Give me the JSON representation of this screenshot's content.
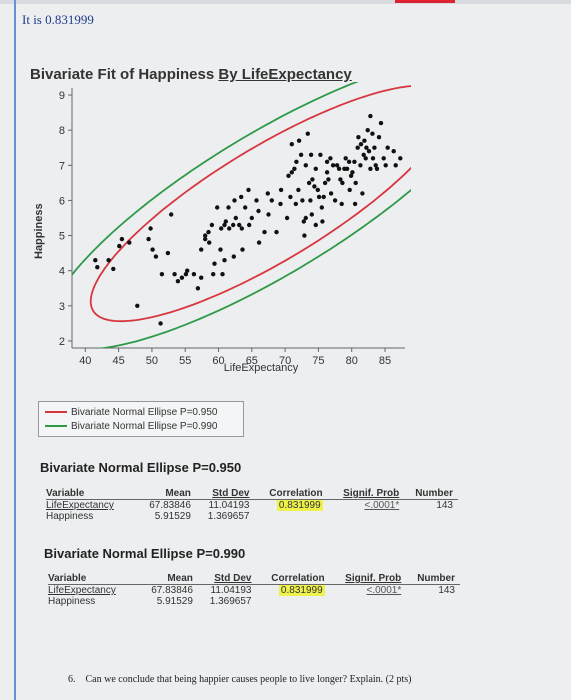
{
  "intro_text": "It is 0.831999",
  "figure": {
    "title_prefix": "Bivariate Fit of Happiness ",
    "title_suffix": "By LifeExpectancy"
  },
  "colors": {
    "ellipse_950": "#d8363f",
    "ellipse_990": "#2e9a48",
    "points": "#111111",
    "highlight": "#eef24a"
  },
  "chart_data": {
    "type": "scatter",
    "title": "Bivariate Fit of Happiness By LifeExpectancy",
    "xlabel": "LifeExpectancy",
    "ylabel": "Happiness",
    "xlim": [
      38,
      88
    ],
    "ylim": [
      1.8,
      9.2
    ],
    "x_ticks": [
      40,
      45,
      50,
      55,
      60,
      65,
      70,
      75,
      80,
      85
    ],
    "y_ticks": [
      2,
      3,
      4,
      5,
      6,
      7,
      8,
      9
    ],
    "points": [
      [
        41.5,
        4.3
      ],
      [
        41.8,
        4.1
      ],
      [
        43.5,
        4.3
      ],
      [
        44.2,
        4.05
      ],
      [
        45.1,
        4.7
      ],
      [
        45.5,
        4.9
      ],
      [
        46.6,
        4.8
      ],
      [
        47.8,
        3.0
      ],
      [
        49.5,
        4.9
      ],
      [
        49.8,
        5.2
      ],
      [
        50.1,
        4.6
      ],
      [
        50.6,
        4.4
      ],
      [
        51.3,
        2.5
      ],
      [
        51.5,
        3.9
      ],
      [
        52.4,
        4.5
      ],
      [
        52.9,
        5.6
      ],
      [
        53.4,
        3.9
      ],
      [
        53.9,
        3.7
      ],
      [
        54.5,
        3.8
      ],
      [
        55.1,
        3.9
      ],
      [
        55.3,
        4.0
      ],
      [
        56.3,
        3.9
      ],
      [
        56.9,
        3.5
      ],
      [
        57.4,
        4.6
      ],
      [
        57.4,
        3.8
      ],
      [
        58.0,
        5.0
      ],
      [
        58.0,
        4.9
      ],
      [
        58.5,
        5.1
      ],
      [
        58.6,
        4.8
      ],
      [
        59.0,
        5.3
      ],
      [
        59.2,
        3.9
      ],
      [
        59.4,
        4.2
      ],
      [
        59.8,
        5.8
      ],
      [
        60.3,
        4.6
      ],
      [
        60.4,
        5.2
      ],
      [
        60.6,
        3.9
      ],
      [
        60.9,
        4.3
      ],
      [
        60.9,
        5.3
      ],
      [
        61.1,
        5.4
      ],
      [
        61.5,
        5.8
      ],
      [
        61.6,
        5.2
      ],
      [
        62.2,
        5.3
      ],
      [
        62.3,
        4.4
      ],
      [
        62.4,
        6.0
      ],
      [
        62.6,
        5.5
      ],
      [
        63.1,
        5.3
      ],
      [
        63.4,
        6.1
      ],
      [
        63.5,
        5.2
      ],
      [
        63.6,
        4.6
      ],
      [
        64.0,
        5.8
      ],
      [
        64.5,
        6.3
      ],
      [
        64.6,
        5.3
      ],
      [
        65.0,
        5.5
      ],
      [
        65.7,
        6.0
      ],
      [
        66.0,
        5.7
      ],
      [
        66.1,
        4.8
      ],
      [
        66.9,
        5.1
      ],
      [
        67.5,
        5.6
      ],
      [
        67.4,
        6.2
      ],
      [
        68.0,
        6.0
      ],
      [
        68.7,
        5.1
      ],
      [
        69.3,
        5.9
      ],
      [
        69.4,
        6.3
      ],
      [
        70.3,
        5.5
      ],
      [
        70.8,
        6.1
      ],
      [
        70.5,
        6.7
      ],
      [
        71.0,
        7.6
      ],
      [
        71.0,
        6.8
      ],
      [
        71.4,
        6.9
      ],
      [
        71.6,
        5.9
      ],
      [
        71.7,
        7.1
      ],
      [
        72.0,
        6.3
      ],
      [
        72.1,
        7.7
      ],
      [
        72.4,
        7.3
      ],
      [
        72.6,
        6.0
      ],
      [
        72.8,
        5.4
      ],
      [
        72.9,
        5.0
      ],
      [
        73.1,
        5.5
      ],
      [
        73.1,
        7.0
      ],
      [
        73.4,
        7.9
      ],
      [
        73.6,
        6.5
      ],
      [
        73.8,
        6.0
      ],
      [
        73.9,
        7.3
      ],
      [
        74.1,
        6.6
      ],
      [
        74.0,
        5.6
      ],
      [
        74.4,
        6.4
      ],
      [
        74.6,
        5.3
      ],
      [
        74.6,
        6.9
      ],
      [
        74.9,
        6.3
      ],
      [
        75.1,
        6.1
      ],
      [
        75.3,
        7.3
      ],
      [
        75.5,
        5.8
      ],
      [
        75.6,
        5.4
      ],
      [
        75.8,
        6.1
      ],
      [
        76.0,
        6.5
      ],
      [
        76.3,
        6.8
      ],
      [
        76.3,
        7.1
      ],
      [
        76.5,
        6.6
      ],
      [
        76.8,
        7.2
      ],
      [
        76.9,
        6.2
      ],
      [
        77.2,
        7.0
      ],
      [
        77.5,
        6.0
      ],
      [
        77.8,
        7.0
      ],
      [
        78.1,
        6.9
      ],
      [
        78.3,
        6.6
      ],
      [
        78.5,
        5.9
      ],
      [
        78.6,
        6.5
      ],
      [
        78.9,
        6.9
      ],
      [
        79.1,
        7.2
      ],
      [
        79.3,
        6.9
      ],
      [
        79.6,
        7.1
      ],
      [
        79.7,
        6.3
      ],
      [
        79.9,
        6.7
      ],
      [
        80.1,
        6.8
      ],
      [
        80.4,
        7.1
      ],
      [
        80.5,
        5.9
      ],
      [
        80.6,
        6.5
      ],
      [
        80.9,
        7.5
      ],
      [
        81.0,
        7.8
      ],
      [
        81.3,
        7.0
      ],
      [
        81.4,
        7.6
      ],
      [
        81.6,
        6.2
      ],
      [
        81.8,
        7.3
      ],
      [
        81.9,
        7.7
      ],
      [
        82.1,
        7.2
      ],
      [
        82.2,
        7.5
      ],
      [
        82.4,
        8.0
      ],
      [
        82.6,
        7.4
      ],
      [
        82.8,
        6.9
      ],
      [
        82.8,
        8.4
      ],
      [
        83.1,
        7.9
      ],
      [
        83.2,
        7.2
      ],
      [
        83.4,
        7.5
      ],
      [
        83.6,
        7.0
      ],
      [
        83.8,
        6.9
      ],
      [
        84.1,
        7.8
      ],
      [
        84.4,
        8.2
      ],
      [
        84.8,
        7.2
      ],
      [
        85.1,
        7.0
      ],
      [
        85.4,
        7.5
      ],
      [
        86.3,
        7.4
      ],
      [
        86.6,
        7.0
      ],
      [
        87.3,
        7.2
      ]
    ],
    "ellipses": [
      {
        "name": "Bivariate Normal Ellipse P=0.950",
        "p": 0.95,
        "color": "#d8363f"
      },
      {
        "name": "Bivariate Normal Ellipse P=0.990",
        "p": 0.99,
        "color": "#2e9a48"
      }
    ],
    "stats": {
      "x_mean": 67.83846,
      "y_mean": 5.91529,
      "x_sd": 11.04193,
      "y_sd": 1.369657,
      "r": 0.831999
    },
    "legend_position": "bottom-left"
  },
  "legend": {
    "items": [
      {
        "label": "Bivariate Normal Ellipse P=0.950"
      },
      {
        "label": "Bivariate Normal Ellipse P=0.990"
      }
    ]
  },
  "sections": [
    {
      "title": "Bivariate Normal Ellipse P=0.950",
      "headers": {
        "variable": "Variable",
        "mean": "Mean",
        "std_dev": "Std Dev",
        "correlation": "Correlation",
        "signif": "Signif. Prob",
        "number": "Number"
      },
      "rows": [
        {
          "variable": "LifeExpectancy",
          "mean": "67.83846",
          "std_dev": "11.04193",
          "correlation": "0.831999",
          "signif": "<.0001*",
          "number": "143"
        },
        {
          "variable": "Happiness",
          "mean": "5.91529",
          "std_dev": "1.369657"
        }
      ]
    },
    {
      "title": "Bivariate Normal Ellipse P=0.990",
      "headers": {
        "variable": "Variable",
        "mean": "Mean",
        "std_dev": "Std Dev",
        "correlation": "Correlation",
        "signif": "Signif. Prob",
        "number": "Number"
      },
      "rows": [
        {
          "variable": "LifeExpectancy",
          "mean": "67.83846",
          "std_dev": "11.04193",
          "correlation": "0.831999",
          "signif": "<.0001*",
          "number": "143"
        },
        {
          "variable": "Happiness",
          "mean": "5.91529",
          "std_dev": "1.369657"
        }
      ]
    }
  ],
  "question": {
    "number": "6.",
    "text": "Can we conclude that being happier causes people to live longer? Explain. (2 pts)"
  }
}
